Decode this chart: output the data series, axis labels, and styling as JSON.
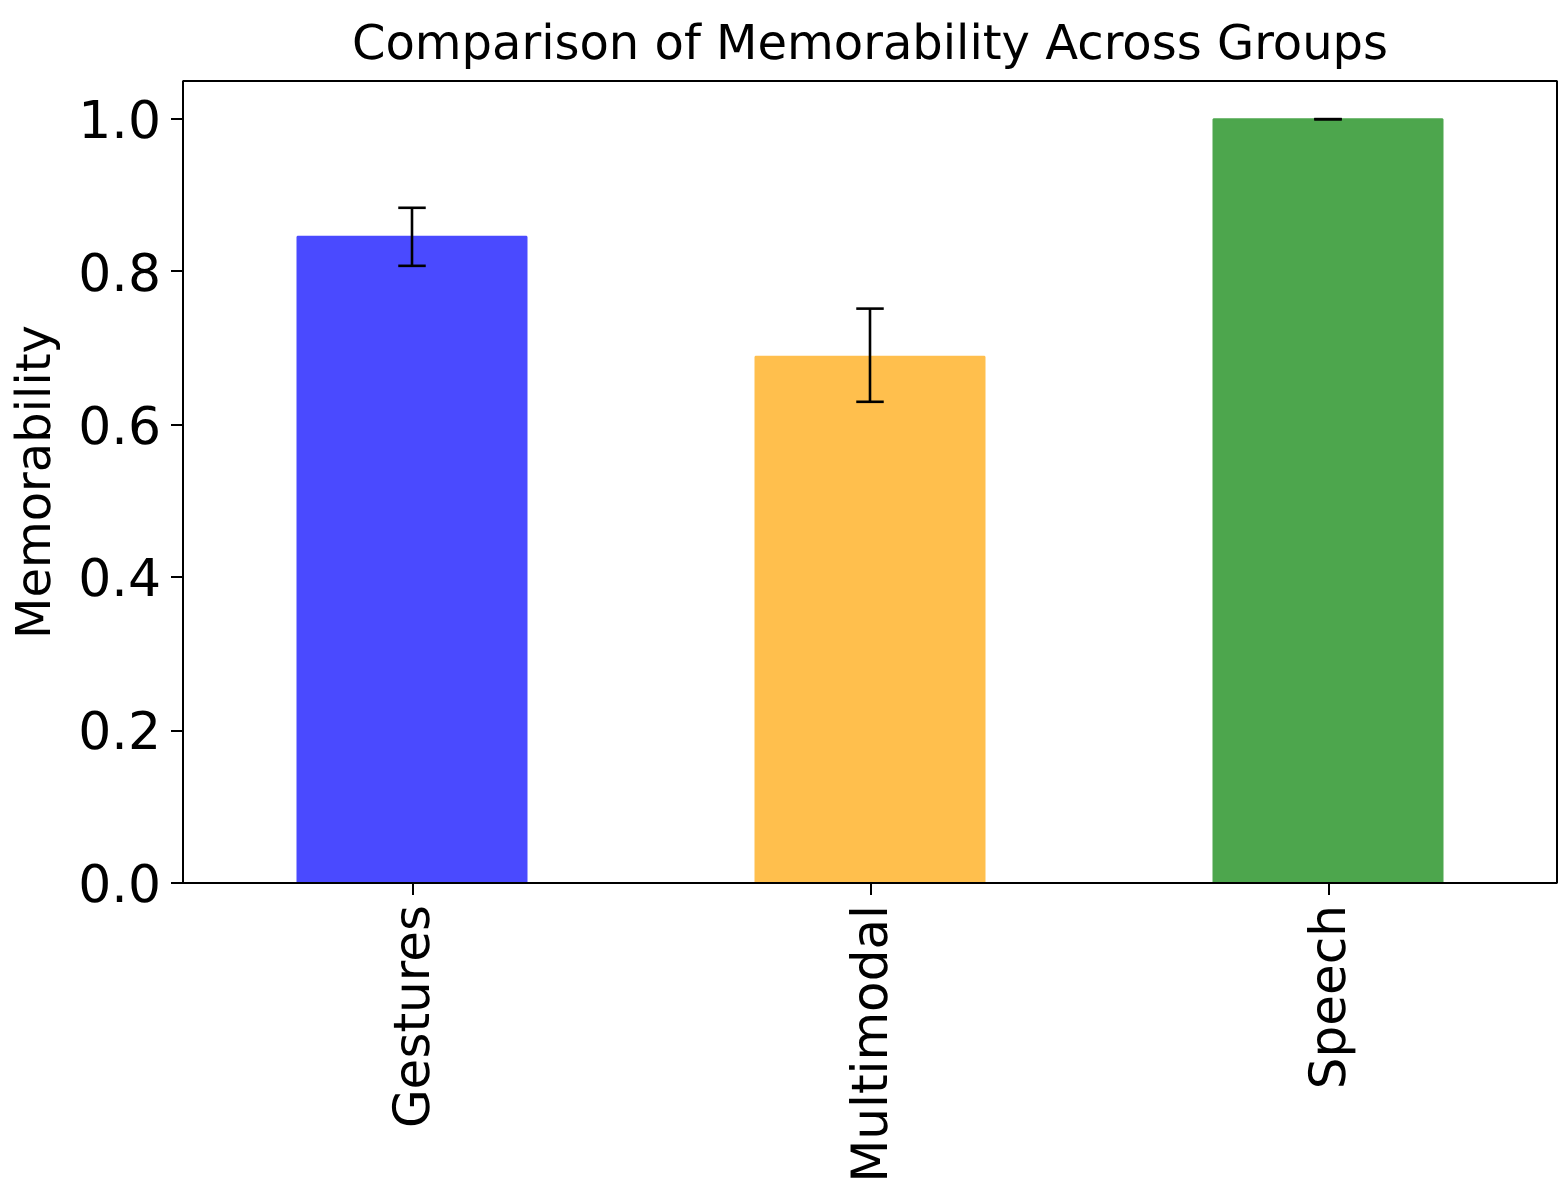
{
  "chart_data": {
    "type": "bar",
    "title": "Comparison of Memorability Across Groups",
    "ylabel": "Memorability",
    "categories": [
      "Gestures",
      "Multimodal",
      "Speech"
    ],
    "values": [
      0.846,
      0.689,
      1.0
    ],
    "colors": [
      "#4a4aff",
      "#ffbf4d",
      "#4da64d"
    ],
    "errors": [
      0.038,
      [
        0.63,
        0.752
      ],
      0.0
    ],
    "ylim": [
      0,
      1.05
    ],
    "yticks": [
      {
        "value": 0,
        "label": "0.0"
      },
      {
        "value": 0.2,
        "label": "0.2"
      },
      {
        "value": 0.4,
        "label": "0.4"
      },
      {
        "value": 0.6,
        "label": "0.6"
      },
      {
        "value": 0.8,
        "label": "0.8"
      },
      {
        "value": 1.0,
        "label": "1.0"
      }
    ],
    "grid": false
  }
}
